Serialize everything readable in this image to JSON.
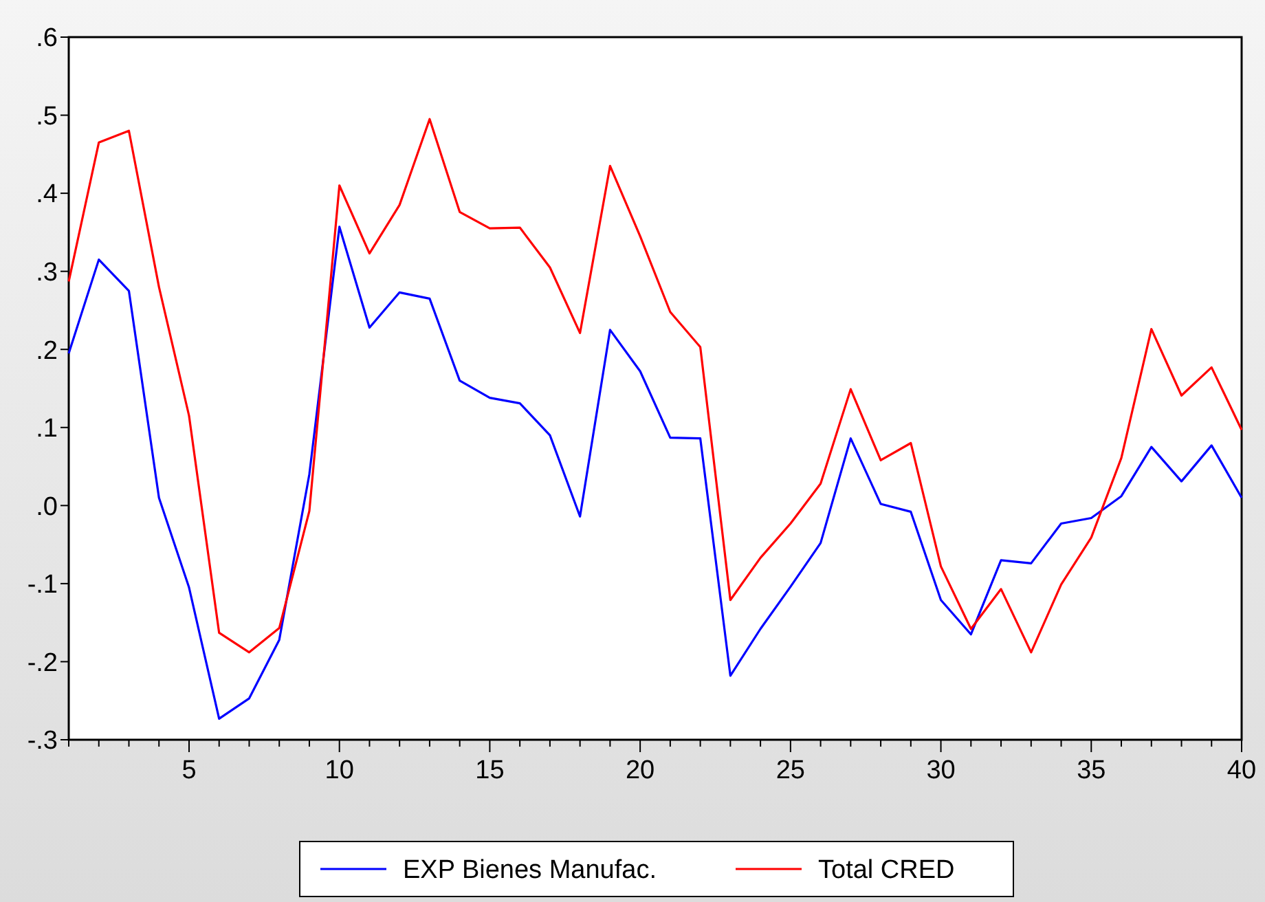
{
  "chart_data": {
    "type": "line",
    "x": [
      1,
      2,
      3,
      4,
      5,
      6,
      7,
      8,
      9,
      10,
      11,
      12,
      13,
      14,
      15,
      16,
      17,
      18,
      19,
      20,
      21,
      22,
      23,
      24,
      25,
      26,
      27,
      28,
      29,
      30,
      31,
      32,
      33,
      34,
      35,
      36,
      37,
      38,
      39,
      40
    ],
    "xlim": [
      1,
      40
    ],
    "xticks": [
      {
        "value": 1,
        "label": null
      },
      {
        "value": 2,
        "label": null
      },
      {
        "value": 3,
        "label": null
      },
      {
        "value": 4,
        "label": null
      },
      5,
      {
        "value": 6,
        "label": null
      },
      {
        "value": 7,
        "label": null
      },
      {
        "value": 8,
        "label": null
      },
      {
        "value": 9,
        "label": null
      },
      10,
      {
        "value": 11,
        "label": null
      },
      {
        "value": 12,
        "label": null
      },
      {
        "value": 13,
        "label": null
      },
      {
        "value": 14,
        "label": null
      },
      15,
      {
        "value": 16,
        "label": null
      },
      {
        "value": 17,
        "label": null
      },
      {
        "value": 18,
        "label": null
      },
      {
        "value": 19,
        "label": null
      },
      20,
      {
        "value": 21,
        "label": null
      },
      {
        "value": 22,
        "label": null
      },
      {
        "value": 23,
        "label": null
      },
      {
        "value": 24,
        "label": null
      },
      25,
      {
        "value": 26,
        "label": null
      },
      {
        "value": 27,
        "label": null
      },
      {
        "value": 28,
        "label": null
      },
      {
        "value": 29,
        "label": null
      },
      30,
      {
        "value": 31,
        "label": null
      },
      {
        "value": 32,
        "label": null
      },
      {
        "value": 33,
        "label": null
      },
      {
        "value": 34,
        "label": null
      },
      35,
      {
        "value": 36,
        "label": null
      },
      {
        "value": 37,
        "label": null
      },
      {
        "value": 38,
        "label": null
      },
      {
        "value": 39,
        "label": null
      },
      40
    ],
    "ylim": [
      -0.3,
      0.6
    ],
    "yticks": [
      {
        "value": -0.3,
        "label": "-.3"
      },
      {
        "value": -0.2,
        "label": "-.2"
      },
      {
        "value": -0.1,
        "label": "-.1"
      },
      {
        "value": 0,
        "label": ".0"
      },
      {
        "value": 0.1,
        "label": ".1"
      },
      {
        "value": 0.2,
        "label": ".2"
      },
      {
        "value": 0.3,
        "label": ".3"
      },
      {
        "value": 0.4,
        "label": ".4"
      },
      {
        "value": 0.5,
        "label": ".5"
      },
      {
        "value": 0.6,
        "label": ".6"
      }
    ],
    "grid": false,
    "legend": "bottom",
    "marker": "none",
    "line_style": "solid",
    "series": [
      {
        "name": "EXP Bienes Manufac.",
        "color": "#0000ff",
        "values": [
          0.195,
          0.315,
          0.275,
          0.01,
          -0.105,
          -0.273,
          -0.247,
          -0.172,
          0.04,
          0.357,
          0.228,
          0.273,
          0.265,
          0.16,
          0.138,
          0.131,
          0.09,
          -0.014,
          0.225,
          0.172,
          0.087,
          0.086,
          -0.218,
          -0.158,
          -0.104,
          -0.048,
          0.086,
          0.002,
          -0.008,
          -0.121,
          -0.165,
          -0.07,
          -0.074,
          -0.023,
          -0.016,
          0.012,
          0.075,
          0.031,
          0.077,
          0.01
        ]
      },
      {
        "name": "Total CRED",
        "color": "#ff0000",
        "values": [
          0.287,
          0.465,
          0.48,
          0.28,
          0.115,
          -0.163,
          -0.188,
          -0.157,
          -0.007,
          0.41,
          0.323,
          0.385,
          0.495,
          0.376,
          0.355,
          0.356,
          0.305,
          0.221,
          0.435,
          0.345,
          0.248,
          0.203,
          -0.121,
          -0.067,
          -0.023,
          0.028,
          0.149,
          0.058,
          0.08,
          -0.078,
          -0.158,
          -0.107,
          -0.188,
          -0.101,
          -0.041,
          0.061,
          0.226,
          0.141,
          0.177,
          0.097
        ]
      }
    ]
  }
}
